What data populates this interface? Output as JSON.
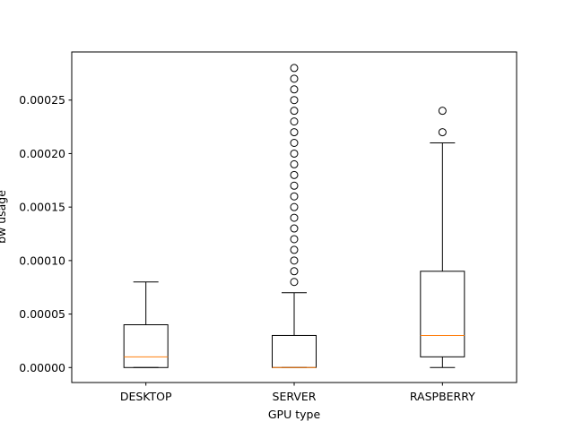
{
  "chart_data": {
    "type": "box",
    "xlabel": "GPU type",
    "ylabel": "bw usage",
    "ylim": [
      -1.4e-05,
      0.000295
    ],
    "yticks": [
      0,
      5e-05,
      0.0001,
      0.00015,
      0.0002,
      0.00025
    ],
    "ytick_labels": [
      "0.00000",
      "0.00005",
      "0.00010",
      "0.00015",
      "0.00020",
      "0.00025"
    ],
    "categories": [
      "DESKTOP",
      "SERVER",
      "RASPBERRY"
    ],
    "colors": {
      "box": "#000000",
      "median": "#ff7f0e",
      "background": "#ffffff"
    },
    "boxes": [
      {
        "category": "DESKTOP",
        "whislo": 0,
        "q1": 0,
        "median": 1e-05,
        "q3": 4e-05,
        "whishi": 8e-05,
        "fliers": []
      },
      {
        "category": "SERVER",
        "whislo": 0,
        "q1": 0,
        "median": 0,
        "q3": 3e-05,
        "whishi": 7e-05,
        "fliers": [
          8e-05,
          9e-05,
          0.0001,
          0.00011,
          0.00012,
          0.00013,
          0.00014,
          0.00015,
          0.00016,
          0.00017,
          0.00018,
          0.00019,
          0.0002,
          0.00021,
          0.00022,
          0.00023,
          0.00024,
          0.00025,
          0.00026,
          0.00027,
          0.00028
        ]
      },
      {
        "category": "RASPBERRY",
        "whislo": 0,
        "q1": 1e-05,
        "median": 3e-05,
        "q3": 9e-05,
        "whishi": 0.00021,
        "fliers": [
          0.00022,
          0.00024
        ]
      }
    ]
  }
}
